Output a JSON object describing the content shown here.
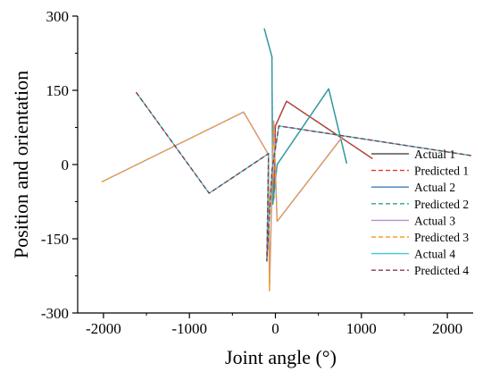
{
  "chart_data": {
    "type": "line",
    "title": "",
    "xlabel": "Joint angle (°)",
    "ylabel": "Position and orientation",
    "xlim": [
      -2300,
      2300
    ],
    "ylim": [
      -300,
      300
    ],
    "xticks": [
      -2000,
      -1000,
      0,
      1000,
      2000
    ],
    "yticks": [
      -300,
      -150,
      0,
      150,
      300
    ],
    "xtick_labels": [
      "-2000",
      "-1000",
      "0",
      "1000",
      "2000"
    ],
    "ytick_labels": [
      "-300",
      "-150",
      "0",
      "150",
      "300"
    ],
    "grid": false,
    "legend_position": "bottom-right",
    "series": [
      {
        "name": "Actual 1",
        "color": "#555555",
        "dash": "solid",
        "x": [
          -20,
          0,
          130,
          1130
        ],
        "y": [
          -70,
          78,
          128,
          12
        ]
      },
      {
        "name": "Predicted 1",
        "color": "#e8392e",
        "dash": "dashed",
        "x": [
          -20,
          0,
          130,
          1130
        ],
        "y": [
          -70,
          78,
          128,
          12
        ]
      },
      {
        "name": "Actual 2",
        "color": "#3f7fb8",
        "dash": "solid",
        "x": [
          -130,
          -40,
          -30,
          20,
          620,
          830
        ],
        "y": [
          275,
          218,
          -80,
          0,
          153,
          2
        ]
      },
      {
        "name": "Predicted 2",
        "color": "#2aa88a",
        "dash": "dashed",
        "x": [
          -130,
          -40,
          -30,
          20,
          620,
          830
        ],
        "y": [
          275,
          218,
          -80,
          0,
          153,
          2
        ]
      },
      {
        "name": "Actual 3",
        "color": "#b48ed6",
        "dash": "solid",
        "x": [
          -2020,
          -370,
          -80,
          -70,
          -20,
          20,
          780
        ],
        "y": [
          -35,
          106,
          20,
          -255,
          88,
          -115,
          56
        ]
      },
      {
        "name": "Predicted 3",
        "color": "#f0a020",
        "dash": "dashed",
        "x": [
          -2020,
          -370,
          -80,
          -70,
          -20,
          20,
          780
        ],
        "y": [
          -35,
          106,
          20,
          -255,
          88,
          -115,
          56
        ]
      },
      {
        "name": "Actual 4",
        "color": "#40c8d0",
        "dash": "solid",
        "x": [
          -1620,
          -770,
          -80,
          -100,
          -40,
          40,
          2280
        ],
        "y": [
          146,
          -58,
          22,
          -195,
          -12,
          78,
          18
        ]
      },
      {
        "name": "Predicted 4",
        "color": "#8b3a4a",
        "dash": "dashed",
        "x": [
          -1620,
          -770,
          -80,
          -100,
          -40,
          40,
          2280
        ],
        "y": [
          146,
          -58,
          22,
          -195,
          -12,
          78,
          18
        ]
      }
    ]
  }
}
